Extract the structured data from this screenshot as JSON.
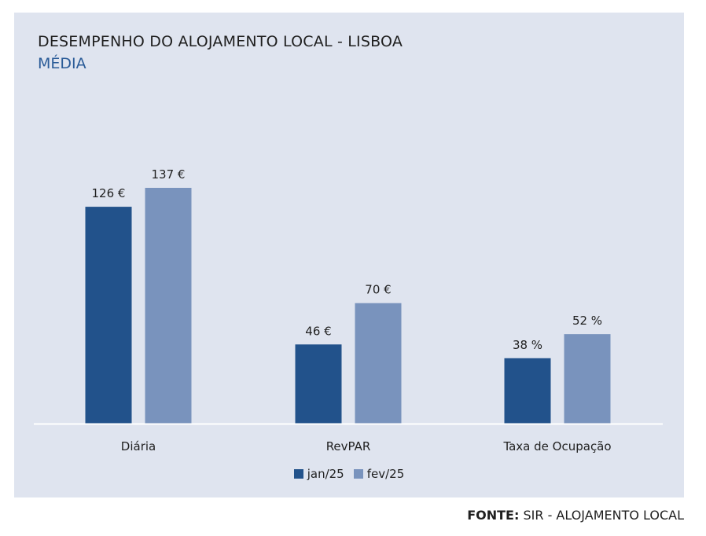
{
  "chart_data": {
    "type": "bar",
    "title": "DESEMPENHO DO ALOJAMENTO LOCAL - LISBOA",
    "subtitle": "MÉDIA",
    "categories": [
      "Diária",
      "RevPAR",
      "Taxa de Ocupação"
    ],
    "series": [
      {
        "name": "jan/25",
        "color": "#22528b",
        "values": [
          126,
          46,
          38
        ],
        "labels": [
          "126 €",
          "46 €",
          "38 %"
        ]
      },
      {
        "name": "fev/25",
        "color": "#7993bd",
        "values": [
          137,
          70,
          52
        ],
        "labels": [
          "137 €",
          "70 €",
          "52 %"
        ]
      }
    ],
    "xlabel": "",
    "ylabel": "",
    "ylim": [
      0,
      137
    ],
    "grid": false,
    "legend_position": "bottom-center"
  },
  "source": {
    "label": "FONTE:",
    "text": "SIR - ALOJAMENTO LOCAL"
  }
}
